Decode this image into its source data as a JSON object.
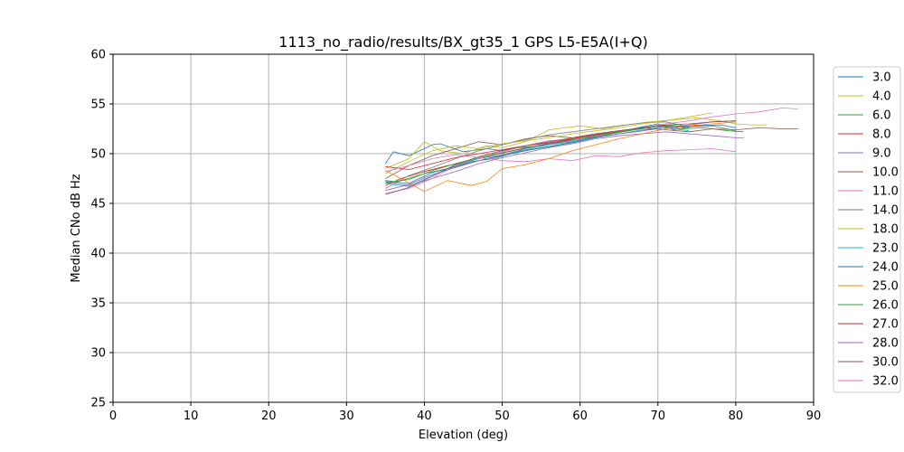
{
  "chart_data": {
    "type": "line",
    "title": "1113_no_radio/results/BX_gt35_1 GPS L5-E5A(I+Q)",
    "xlabel": "Elevation (deg)",
    "ylabel": "Median CNo dB Hz",
    "xlim": [
      0,
      90
    ],
    "ylim": [
      25,
      60
    ],
    "xticks": [
      "0",
      "10",
      "20",
      "30",
      "40",
      "50",
      "60",
      "70",
      "80",
      "90"
    ],
    "yticks": [
      "25",
      "30",
      "35",
      "40",
      "45",
      "50",
      "55",
      "60"
    ],
    "grid": true,
    "legend_position": "right",
    "series": [
      {
        "name": "3.0",
        "color": "#1f77b4",
        "x": [
          35,
          36,
          38,
          40,
          41,
          42,
          45,
          48,
          50,
          52,
          55,
          58,
          60,
          62,
          65,
          68,
          70,
          72,
          75,
          78,
          80
        ],
        "y": [
          49.0,
          50.2,
          49.8,
          50.5,
          50.9,
          51.0,
          50.2,
          50.5,
          50.3,
          50.6,
          50.8,
          51.2,
          51.4,
          51.8,
          52.2,
          52.7,
          53.0,
          52.4,
          52.8,
          52.9,
          52.6
        ]
      },
      {
        "name": "4.0",
        "color": "#bcbd22",
        "x": [
          35,
          38,
          40,
          42,
          45,
          48,
          50,
          53,
          56,
          58,
          60,
          63,
          66,
          69,
          72,
          75,
          78,
          80,
          82,
          84
        ],
        "y": [
          48.5,
          49.5,
          51.2,
          50.3,
          50.0,
          50.8,
          50.6,
          51.2,
          52.4,
          52.6,
          52.8,
          52.5,
          52.9,
          53.2,
          53.4,
          53.6,
          53.3,
          53.0,
          52.9,
          52.9
        ]
      },
      {
        "name": "6.0",
        "color": "#2ca02c",
        "x": [
          35,
          37,
          40,
          43,
          46,
          49,
          52,
          55,
          58,
          61,
          64,
          67,
          70,
          73,
          76,
          79,
          81
        ],
        "y": [
          47.0,
          47.3,
          48.0,
          48.5,
          49.2,
          49.5,
          50.2,
          50.6,
          51.0,
          51.5,
          52.0,
          52.4,
          52.8,
          52.5,
          52.6,
          52.3,
          52.2
        ]
      },
      {
        "name": "8.0",
        "color": "#d62728",
        "x": [
          35,
          37,
          40,
          43,
          46,
          49,
          52,
          55,
          58,
          61,
          64,
          67,
          70,
          73,
          75
        ],
        "y": [
          46.8,
          47.5,
          48.2,
          48.8,
          49.3,
          49.9,
          50.4,
          50.9,
          51.3,
          51.8,
          52.1,
          52.5,
          52.8,
          52.7,
          52.9
        ]
      },
      {
        "name": "9.0",
        "color": "#9467bd",
        "x": [
          35,
          38,
          41,
          44,
          47,
          50,
          53,
          56,
          59,
          62,
          65,
          68,
          71,
          74,
          77,
          80,
          81
        ],
        "y": [
          47.2,
          46.8,
          47.5,
          48.2,
          49.0,
          49.6,
          50.1,
          50.6,
          51.0,
          51.5,
          51.8,
          52.0,
          52.2,
          52.0,
          51.8,
          51.6,
          51.6
        ]
      },
      {
        "name": "10.0",
        "color": "#8c564b",
        "x": [
          35,
          38,
          41,
          44,
          47,
          50,
          53,
          56,
          59,
          62,
          65,
          68,
          71,
          74,
          77,
          80,
          83,
          86,
          88
        ],
        "y": [
          47.5,
          48.8,
          49.8,
          50.5,
          51.2,
          50.9,
          51.5,
          51.8,
          51.6,
          52.0,
          52.3,
          52.6,
          52.4,
          52.2,
          52.5,
          52.4,
          52.6,
          52.5,
          52.5
        ]
      },
      {
        "name": "11.0",
        "color": "#e377c2",
        "x": [
          35,
          38,
          41,
          44,
          47,
          50,
          53,
          56,
          59,
          62,
          65,
          68,
          71,
          74,
          77,
          80,
          83,
          86,
          88
        ],
        "y": [
          46.0,
          46.5,
          47.5,
          48.8,
          49.5,
          50.2,
          50.8,
          51.3,
          51.5,
          51.9,
          52.2,
          52.6,
          53.0,
          53.3,
          53.7,
          54.0,
          54.2,
          54.6,
          54.5
        ]
      },
      {
        "name": "14.0",
        "color": "#7f7f7f",
        "x": [
          35,
          38,
          41,
          44,
          47,
          50,
          53,
          56,
          59,
          62,
          65,
          68,
          71,
          74,
          77,
          80
        ],
        "y": [
          46.5,
          47.8,
          48.6,
          49.5,
          50.3,
          50.9,
          51.4,
          51.9,
          52.2,
          52.5,
          52.8,
          53.1,
          53.2,
          52.7,
          52.8,
          52.3
        ]
      },
      {
        "name": "18.0",
        "color": "#bcbd22",
        "x": [
          35,
          38,
          41,
          44,
          47,
          50,
          53,
          56,
          59,
          62,
          65,
          68,
          71,
          74,
          77
        ],
        "y": [
          48.0,
          49.2,
          50.3,
          50.8,
          50.5,
          51.0,
          51.3,
          51.6,
          52.0,
          52.3,
          52.6,
          53.0,
          53.3,
          53.7,
          54.1
        ]
      },
      {
        "name": "23.0",
        "color": "#17becf",
        "x": [
          35,
          38,
          41,
          44,
          47,
          50,
          53,
          56,
          59,
          62,
          65,
          68,
          71,
          74
        ],
        "y": [
          47.0,
          46.7,
          47.8,
          48.9,
          49.5,
          49.9,
          50.4,
          50.9,
          51.2,
          51.6,
          52.0,
          52.4,
          52.6,
          52.3
        ]
      },
      {
        "name": "24.0",
        "color": "#1f77b4",
        "x": [
          35,
          38,
          41,
          44,
          47,
          50,
          53,
          56,
          59,
          62,
          65,
          68,
          71,
          74
        ],
        "y": [
          47.3,
          47.0,
          48.1,
          48.7,
          49.3,
          49.8,
          50.3,
          50.7,
          51.1,
          51.6,
          52.0,
          52.3,
          52.8,
          52.6
        ]
      },
      {
        "name": "25.0",
        "color": "#ff7f0e",
        "x": [
          35,
          37,
          40,
          43,
          46,
          48,
          50,
          53,
          56,
          59,
          62,
          65,
          68,
          71,
          74,
          77,
          80
        ],
        "y": [
          48.3,
          47.5,
          46.2,
          47.3,
          46.8,
          47.2,
          48.5,
          48.9,
          49.5,
          50.3,
          50.9,
          51.5,
          52.0,
          52.5,
          52.8,
          53.0,
          53.2
        ]
      },
      {
        "name": "26.0",
        "color": "#2ca02c",
        "x": [
          35,
          38,
          41,
          44,
          47,
          50,
          53,
          56,
          59,
          62,
          65,
          68,
          71,
          74
        ],
        "y": [
          47.1,
          47.4,
          48.3,
          49.0,
          49.6,
          50.1,
          50.6,
          51.0,
          51.4,
          51.8,
          52.2,
          52.5,
          52.9,
          52.7
        ]
      },
      {
        "name": "27.0",
        "color": "#d62728",
        "x": [
          35,
          38,
          41,
          44,
          47,
          50,
          53,
          56,
          59,
          62,
          65,
          68,
          71
        ],
        "y": [
          48.7,
          48.4,
          49.0,
          49.6,
          50.0,
          50.4,
          50.8,
          51.1,
          51.5,
          51.9,
          52.3,
          52.6,
          52.9
        ]
      },
      {
        "name": "28.0",
        "color": "#9467bd",
        "x": [
          35,
          38,
          41,
          44,
          47,
          50,
          53,
          56,
          59,
          62,
          65,
          68,
          71,
          74,
          77,
          80
        ],
        "y": [
          46.3,
          46.9,
          47.9,
          48.6,
          49.3,
          49.9,
          50.5,
          51.0,
          51.3,
          51.7,
          52.0,
          52.3,
          52.6,
          52.9,
          53.2,
          53.3
        ]
      },
      {
        "name": "30.0",
        "color": "#8c564b",
        "x": [
          35,
          38,
          41,
          44,
          47,
          50,
          53,
          56,
          59,
          62,
          65,
          68,
          71,
          74,
          77,
          80
        ],
        "y": [
          45.9,
          46.6,
          47.7,
          48.9,
          49.7,
          50.3,
          50.8,
          51.2,
          51.6,
          52.0,
          52.3,
          52.6,
          52.9,
          53.0,
          53.2,
          53.3
        ]
      },
      {
        "name": "32.0",
        "color": "#e377c2",
        "x": [
          35,
          38,
          41,
          44,
          47,
          50,
          53,
          56,
          59,
          62,
          65,
          68,
          71,
          74,
          77,
          80
        ],
        "y": [
          48.2,
          48.8,
          49.5,
          49.9,
          49.6,
          49.3,
          49.2,
          49.5,
          49.3,
          49.8,
          49.7,
          50.1,
          50.3,
          50.4,
          50.5,
          50.2
        ]
      }
    ]
  }
}
